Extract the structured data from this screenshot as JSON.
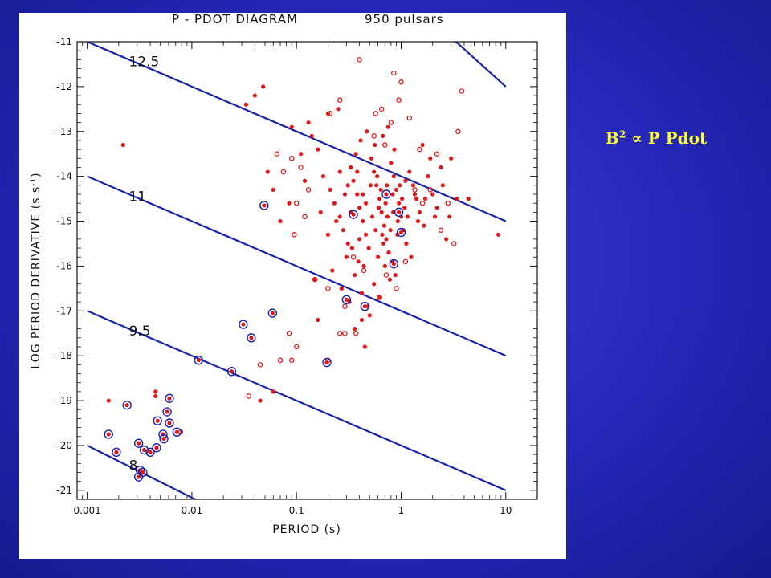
{
  "equation": {
    "lhs": "B",
    "exponent": "2",
    "symbol": "∝",
    "rhs": "P Pdot"
  },
  "chart_data": {
    "type": "scatter",
    "title_left": "P  -  PDOT  DIAGRAM",
    "title_right": "950  pulsars",
    "xlabel": "PERIOD   (s)",
    "ylabel": "LOG  PERIOD  DERIVATIVE  (s s",
    "ylabel_exp": "-1",
    "ylabel_close": ")",
    "x_scale": "log",
    "xlim": [
      0.0008,
      20
    ],
    "ylim": [
      -21.2,
      -11
    ],
    "x_ticks": [
      {
        "value": 0.001,
        "label": "0.001"
      },
      {
        "value": 0.01,
        "label": "0.01"
      },
      {
        "value": 0.1,
        "label": "0.1"
      },
      {
        "value": 1,
        "label": "1"
      },
      {
        "value": 10,
        "label": "10"
      }
    ],
    "y_ticks": [
      {
        "value": -11,
        "label": "-11"
      },
      {
        "value": -12,
        "label": "-12"
      },
      {
        "value": -13,
        "label": "-13"
      },
      {
        "value": -14,
        "label": "-14"
      },
      {
        "value": -15,
        "label": "-15"
      },
      {
        "value": -16,
        "label": "-16"
      },
      {
        "value": -17,
        "label": "-17"
      },
      {
        "value": -18,
        "label": "-18"
      },
      {
        "value": -19,
        "label": "-19"
      },
      {
        "value": -20,
        "label": "-20"
      },
      {
        "value": -21,
        "label": "-21"
      }
    ],
    "field_lines": [
      {
        "label": "12.5",
        "x": [
          0.001,
          10
        ],
        "y": [
          -11,
          -15
        ],
        "label_at": [
          0.0025,
          -11.55
        ]
      },
      {
        "label": "11",
        "x": [
          0.001,
          10
        ],
        "y": [
          -14,
          -18
        ],
        "label_at": [
          0.0025,
          -14.55
        ]
      },
      {
        "label": "9.5",
        "x": [
          0.001,
          10
        ],
        "y": [
          -17,
          -21
        ],
        "label_at": [
          0.0025,
          -17.55
        ]
      },
      {
        "label": "8",
        "x": [
          0.001,
          0.016
        ],
        "y": [
          -20,
          -21.4
        ],
        "label_at": [
          0.0025,
          -20.55
        ]
      },
      {
        "label": "",
        "x": [
          3,
          10
        ],
        "y": [
          -10.9,
          -12
        ],
        "label_at": null
      }
    ],
    "series": [
      {
        "style": "filled",
        "color": "#e01818",
        "points": [
          [
            0.0016,
            -19.0
          ],
          [
            0.0022,
            -13.3
          ],
          [
            0.033,
            -12.4
          ],
          [
            0.04,
            -12.2
          ],
          [
            0.048,
            -12.0
          ],
          [
            0.09,
            -12.9
          ],
          [
            0.13,
            -12.8
          ],
          [
            0.14,
            -13.1
          ],
          [
            0.2,
            -12.6
          ],
          [
            0.25,
            -12.5
          ],
          [
            0.06,
            -18.8
          ],
          [
            0.045,
            -19.0
          ],
          [
            0.0045,
            -18.8
          ],
          [
            0.11,
            -13.5
          ],
          [
            0.16,
            -13.4
          ],
          [
            0.18,
            -14.0
          ],
          [
            0.21,
            -14.3
          ],
          [
            0.23,
            -14.6
          ],
          [
            0.26,
            -14.9
          ],
          [
            0.28,
            -15.2
          ],
          [
            0.31,
            -15.5
          ],
          [
            0.33,
            -13.8
          ],
          [
            0.35,
            -14.1
          ],
          [
            0.38,
            -14.4
          ],
          [
            0.4,
            -14.7
          ],
          [
            0.43,
            -15.0
          ],
          [
            0.46,
            -15.3
          ],
          [
            0.49,
            -15.6
          ],
          [
            0.52,
            -13.6
          ],
          [
            0.55,
            -13.9
          ],
          [
            0.58,
            -14.2
          ],
          [
            0.62,
            -14.5
          ],
          [
            0.65,
            -14.8
          ],
          [
            0.69,
            -15.1
          ],
          [
            0.72,
            -15.4
          ],
          [
            0.76,
            -15.7
          ],
          [
            0.8,
            -13.7
          ],
          [
            0.85,
            -14.0
          ],
          [
            0.9,
            -14.3
          ],
          [
            0.95,
            -14.6
          ],
          [
            1.0,
            -14.9
          ],
          [
            1.05,
            -15.2
          ],
          [
            1.12,
            -15.5
          ],
          [
            1.2,
            -13.9
          ],
          [
            1.3,
            -14.2
          ],
          [
            1.4,
            -14.5
          ],
          [
            1.5,
            -14.8
          ],
          [
            1.65,
            -15.1
          ],
          [
            1.8,
            -14.0
          ],
          [
            2.0,
            -14.4
          ],
          [
            2.2,
            -14.7
          ],
          [
            2.5,
            -14.2
          ],
          [
            2.9,
            -14.9
          ],
          [
            3.4,
            -14.5
          ],
          [
            4.4,
            -14.5
          ],
          [
            8.5,
            -15.3
          ],
          [
            0.15,
            -16.3
          ],
          [
            0.22,
            -16.1
          ],
          [
            0.27,
            -16.5
          ],
          [
            0.32,
            -16.8
          ],
          [
            0.36,
            -16.2
          ],
          [
            0.42,
            -16.6
          ],
          [
            0.48,
            -16.9
          ],
          [
            0.55,
            -16.4
          ],
          [
            0.63,
            -16.7
          ],
          [
            0.7,
            -16.0
          ],
          [
            0.78,
            -16.3
          ],
          [
            0.88,
            -16.2
          ],
          [
            0.5,
            -17.1
          ],
          [
            0.45,
            -17.8
          ],
          [
            0.3,
            -15.8
          ],
          [
            0.34,
            -15.6
          ],
          [
            0.39,
            -15.9
          ],
          [
            0.44,
            -16.0
          ],
          [
            0.6,
            -15.8
          ],
          [
            0.68,
            -15.5
          ],
          [
            0.82,
            -15.9
          ],
          [
            0.92,
            -15.3
          ],
          [
            1.1,
            -14.1
          ],
          [
            1.25,
            -15.8
          ],
          [
            0.24,
            -15.0
          ],
          [
            0.29,
            -14.4
          ],
          [
            0.37,
            -13.5
          ],
          [
            0.41,
            -13.2
          ],
          [
            0.47,
            -13.0
          ],
          [
            0.56,
            -13.3
          ],
          [
            0.67,
            -13.1
          ],
          [
            0.75,
            -12.9
          ],
          [
            0.86,
            -13.4
          ],
          [
            1.6,
            -13.3
          ],
          [
            1.9,
            -13.6
          ],
          [
            2.4,
            -13.8
          ],
          [
            3.0,
            -13.6
          ],
          [
            2.7,
            -15.4
          ],
          [
            0.2,
            -15.3
          ],
          [
            0.17,
            -14.8
          ],
          [
            0.12,
            -14.1
          ],
          [
            0.085,
            -14.6
          ],
          [
            0.07,
            -15.0
          ],
          [
            0.06,
            -14.3
          ],
          [
            0.053,
            -13.9
          ],
          [
            0.38,
            -13.9
          ],
          [
            0.51,
            -14.2
          ],
          [
            0.59,
            -14.0
          ],
          [
            0.64,
            -14.3
          ],
          [
            0.71,
            -14.6
          ],
          [
            0.83,
            -14.4
          ],
          [
            0.97,
            -14.2
          ],
          [
            1.08,
            -14.7
          ],
          [
            1.35,
            -14.4
          ],
          [
            0.26,
            -13.9
          ],
          [
            0.33,
            -14.8
          ],
          [
            0.43,
            -14.4
          ],
          [
            0.53,
            -14.9
          ],
          [
            0.74,
            -14.9
          ],
          [
            0.57,
            -15.2
          ],
          [
            0.66,
            -15.3
          ],
          [
            0.79,
            -15.2
          ],
          [
            0.93,
            -15.0
          ],
          [
            1.15,
            -14.9
          ],
          [
            1.45,
            -15.0
          ],
          [
            1.7,
            -14.5
          ],
          [
            2.1,
            -14.9
          ],
          [
            0.31,
            -14.2
          ],
          [
            0.4,
            -15.4
          ],
          [
            0.46,
            -14.6
          ],
          [
            0.61,
            -14.7
          ],
          [
            0.73,
            -14.2
          ],
          [
            0.84,
            -14.8
          ],
          [
            1.02,
            -14.5
          ],
          [
            0.0045,
            -18.9
          ],
          [
            0.16,
            -17.2
          ],
          [
            0.36,
            -17.4
          ],
          [
            0.42,
            -17.2
          ]
        ]
      },
      {
        "style": "open",
        "color": "#e01818",
        "points": [
          [
            0.4,
            -11.4
          ],
          [
            0.85,
            -11.7
          ],
          [
            1.0,
            -11.9
          ],
          [
            3.8,
            -12.1
          ],
          [
            0.95,
            -12.3
          ],
          [
            0.21,
            -12.6
          ],
          [
            0.26,
            -12.3
          ],
          [
            0.57,
            -12.6
          ],
          [
            0.8,
            -12.8
          ],
          [
            1.2,
            -12.7
          ],
          [
            2.2,
            -13.5
          ],
          [
            3.5,
            -13.0
          ],
          [
            1.5,
            -13.4
          ],
          [
            0.065,
            -13.5
          ],
          [
            0.075,
            -13.9
          ],
          [
            0.09,
            -13.6
          ],
          [
            0.11,
            -13.8
          ],
          [
            0.13,
            -14.3
          ],
          [
            0.1,
            -14.6
          ],
          [
            0.12,
            -14.9
          ],
          [
            0.095,
            -15.3
          ],
          [
            0.15,
            -16.3
          ],
          [
            0.2,
            -16.5
          ],
          [
            0.29,
            -16.9
          ],
          [
            0.26,
            -17.5
          ],
          [
            0.29,
            -17.5
          ],
          [
            0.1,
            -17.8
          ],
          [
            0.09,
            -18.1
          ],
          [
            0.07,
            -18.1
          ],
          [
            0.2,
            -18.1
          ],
          [
            0.045,
            -18.2
          ],
          [
            0.035,
            -18.9
          ],
          [
            0.085,
            -17.5
          ],
          [
            0.0078,
            -19.7
          ],
          [
            0.37,
            -17.5
          ],
          [
            0.55,
            -13.1
          ],
          [
            0.7,
            -13.3
          ],
          [
            0.65,
            -12.5
          ],
          [
            1.35,
            -14.3
          ],
          [
            1.6,
            -14.6
          ],
          [
            1.9,
            -14.3
          ],
          [
            2.4,
            -15.2
          ],
          [
            3.2,
            -15.5
          ],
          [
            2.8,
            -14.6
          ],
          [
            0.35,
            -15.8
          ],
          [
            0.44,
            -16.1
          ],
          [
            0.72,
            -16.2
          ],
          [
            0.9,
            -16.5
          ],
          [
            0.62,
            -16.7
          ],
          [
            1.1,
            -15.9
          ]
        ]
      },
      {
        "style": "ringed",
        "color": "#e01818",
        "ring_color": "#1a22a8",
        "points": [
          [
            0.0016,
            -19.75
          ],
          [
            0.0019,
            -20.15
          ],
          [
            0.0024,
            -19.1
          ],
          [
            0.0031,
            -19.95
          ],
          [
            0.0031,
            -20.7
          ],
          [
            0.0032,
            -20.55
          ],
          [
            0.0034,
            -20.6
          ],
          [
            0.0035,
            -20.1
          ],
          [
            0.004,
            -20.15
          ],
          [
            0.0046,
            -20.05
          ],
          [
            0.0047,
            -19.45
          ],
          [
            0.0053,
            -19.75
          ],
          [
            0.0054,
            -19.85
          ],
          [
            0.0058,
            -19.25
          ],
          [
            0.0061,
            -18.95
          ],
          [
            0.0061,
            -19.5
          ],
          [
            0.0072,
            -19.7
          ],
          [
            0.0116,
            -18.1
          ],
          [
            0.024,
            -18.35
          ],
          [
            0.031,
            -17.3
          ],
          [
            0.037,
            -17.6
          ],
          [
            0.059,
            -17.05
          ],
          [
            0.049,
            -14.65
          ],
          [
            0.195,
            -18.15
          ],
          [
            0.3,
            -16.75
          ],
          [
            0.45,
            -16.9
          ],
          [
            0.35,
            -14.85
          ],
          [
            0.72,
            -14.4
          ],
          [
            0.95,
            -14.8
          ],
          [
            1.0,
            -15.25
          ],
          [
            0.85,
            -15.95
          ]
        ]
      }
    ],
    "grid": false,
    "legend": "none"
  }
}
